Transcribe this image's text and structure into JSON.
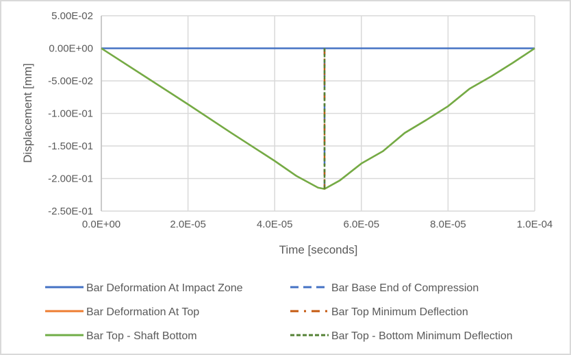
{
  "chart_data": {
    "type": "line",
    "title": "",
    "xlabel": "Time [seconds]",
    "ylabel": "Displacement [mm]",
    "xlim": [
      0,
      0.0001
    ],
    "ylim": [
      -0.25,
      0.05
    ],
    "grid": true,
    "legend_position": "bottom",
    "x_ticks": [
      "0.0E+00",
      "2.0E-05",
      "4.0E-05",
      "6.0E-05",
      "8.0E-05",
      "1.0E-04"
    ],
    "y_ticks": [
      "5.00E-02",
      "0.00E+00",
      "-5.00E-02",
      "-1.00E-01",
      "-1.50E-01",
      "-2.00E-01",
      "-2.50E-01"
    ],
    "series": [
      {
        "name": "Bar Deformation At Impact Zone",
        "color": "#4472c4",
        "style": "solid",
        "x": [
          0,
          0.0001
        ],
        "y": [
          0,
          0
        ]
      },
      {
        "name": "Bar Deformation At Top",
        "color": "#ed7d31",
        "style": "solid",
        "x": [
          0,
          1e-05,
          2e-05,
          3e-05,
          4e-05,
          4.5e-05,
          5e-05,
          5.15e-05,
          5.5e-05,
          6e-05,
          6.5e-05,
          7e-05,
          7.5e-05,
          8e-05,
          8.5e-05,
          9e-05,
          9.5e-05,
          0.0001
        ],
        "y": [
          0,
          -0.043,
          -0.086,
          -0.13,
          -0.173,
          -0.196,
          -0.214,
          -0.216,
          -0.203,
          -0.177,
          -0.158,
          -0.13,
          -0.11,
          -0.089,
          -0.062,
          -0.043,
          -0.022,
          0
        ]
      },
      {
        "name": "Bar Top - Shaft Bottom",
        "color": "#70ad47",
        "style": "solid",
        "x": [
          0,
          1e-05,
          2e-05,
          3e-05,
          4e-05,
          4.5e-05,
          5e-05,
          5.15e-05,
          5.5e-05,
          6e-05,
          6.5e-05,
          7e-05,
          7.5e-05,
          8e-05,
          8.5e-05,
          9e-05,
          9.5e-05,
          0.0001
        ],
        "y": [
          0,
          -0.043,
          -0.086,
          -0.13,
          -0.173,
          -0.196,
          -0.214,
          -0.216,
          -0.203,
          -0.177,
          -0.158,
          -0.13,
          -0.11,
          -0.089,
          -0.062,
          -0.043,
          -0.022,
          0
        ]
      },
      {
        "name": "Bar Base End of Compression",
        "color": "#4472c4",
        "style": "dash",
        "x": [
          5.15e-05,
          5.15e-05
        ],
        "y": [
          0,
          -0.216
        ]
      },
      {
        "name": "Bar Top Minimum Deflection",
        "color": "#c55a11",
        "style": "dash-dot",
        "x": [
          5.15e-05,
          5.15e-05
        ],
        "y": [
          0,
          -0.216
        ]
      },
      {
        "name": "Bar Top - Bottom Minimum Deflection",
        "color": "#548235",
        "style": "short-dash",
        "x": [
          5.15e-05,
          5.15e-05
        ],
        "y": [
          0,
          -0.216
        ]
      }
    ]
  },
  "legend": {
    "items": [
      {
        "label": "Bar Deformation At Impact Zone"
      },
      {
        "label": "Bar Base End of Compression"
      },
      {
        "label": "Bar Deformation At Top"
      },
      {
        "label": "Bar Top Minimum Deflection"
      },
      {
        "label": "Bar Top - Shaft Bottom"
      },
      {
        "label": "Bar Top - Bottom Minimum Deflection"
      }
    ]
  },
  "colors": {
    "gridline": "#d9d9d9",
    "axis_text": "#595959",
    "border": "#d9d9d9"
  }
}
